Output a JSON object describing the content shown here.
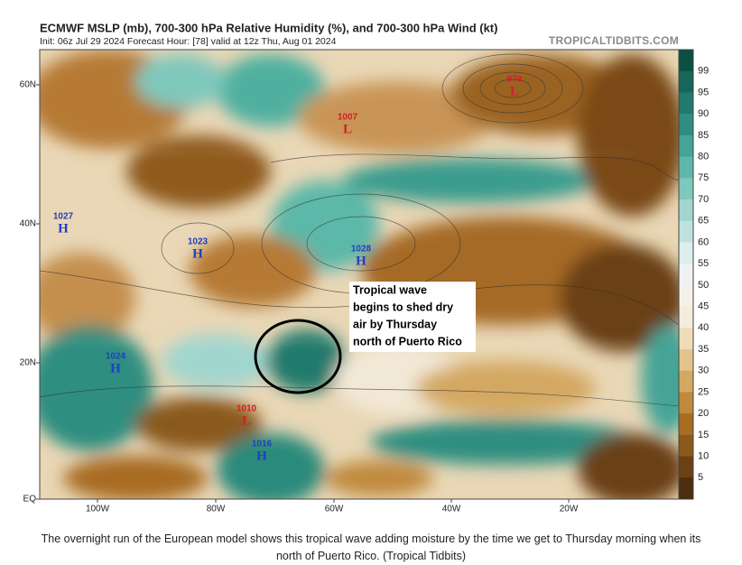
{
  "header": {
    "title": "ECMWF MSLP (mb), 700-300 hPa Relative Humidity (%), and 700-300 hPa Wind (kt)",
    "subtitle": "Init: 06z Jul 29 2024   Forecast Hour: [78]   valid at 12z Thu, Aug 01 2024",
    "source": "TROPICALTIDBITS.COM"
  },
  "map": {
    "lat_labels": [
      "60N",
      "40N",
      "20N",
      "EQ"
    ],
    "lon_labels": [
      "100W",
      "80W",
      "60W",
      "40W",
      "20W"
    ],
    "pressure_centers": [
      {
        "value": "979",
        "letter": "L"
      },
      {
        "value": "1007",
        "letter": "L"
      },
      {
        "value": "1027",
        "letter": "H"
      },
      {
        "value": "1023",
        "letter": "H"
      },
      {
        "value": "1028",
        "letter": "H"
      },
      {
        "value": "1024",
        "letter": "H"
      },
      {
        "value": "1010",
        "letter": "L"
      },
      {
        "value": "1016",
        "letter": "H"
      }
    ],
    "annotation": [
      "Tropical wave",
      "begins to shed dry",
      "air by Thursday",
      "north of Puerto Rico"
    ]
  },
  "colorbar": {
    "ticks": [
      "99",
      "95",
      "90",
      "85",
      "80",
      "75",
      "70",
      "65",
      "60",
      "55",
      "50",
      "45",
      "40",
      "35",
      "30",
      "25",
      "20",
      "15",
      "10",
      "5"
    ]
  },
  "caption": [
    "The overnight run of the European model shows this tropical wave adding moisture by the time we get to Thursday morning when its",
    "north of Puerto Rico. (Tropical Tidbits)"
  ]
}
